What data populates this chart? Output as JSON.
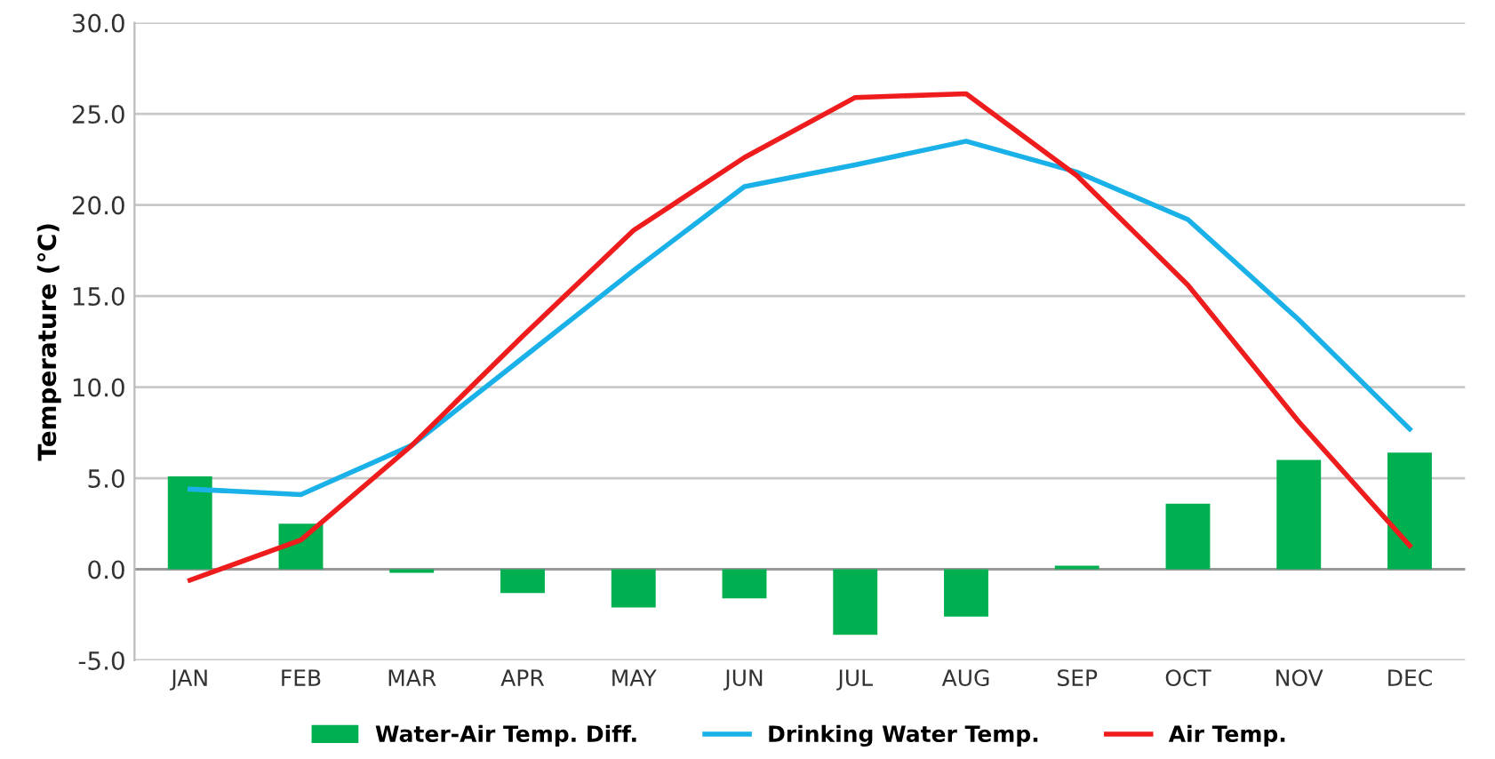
{
  "chart_data": {
    "type": "line",
    "ylabel": "Temperature (℃)",
    "categories": [
      "JAN",
      "FEB",
      "MAR",
      "APR",
      "MAY",
      "JUN",
      "JUL",
      "AUG",
      "SEP",
      "OCT",
      "NOV",
      "DEC"
    ],
    "series": [
      {
        "name": "Water-Air Temp. Diff.",
        "type": "bar",
        "color": "#00b050",
        "values": [
          5.1,
          2.5,
          -0.2,
          -1.3,
          -2.1,
          -1.6,
          -3.6,
          -2.6,
          0.2,
          3.6,
          6.0,
          6.4
        ]
      },
      {
        "name": "Drinking Water Temp.",
        "color": "#1ab0e8",
        "values": [
          4.4,
          4.1,
          6.8,
          11.6,
          16.4,
          21.0,
          22.2,
          23.5,
          21.8,
          19.2,
          13.7,
          7.7
        ]
      },
      {
        "name": "Air Temp.",
        "color": "#ee1c1c",
        "values": [
          -0.6,
          1.6,
          6.8,
          12.8,
          18.6,
          22.6,
          25.9,
          26.1,
          21.6,
          15.6,
          8.1,
          1.3
        ]
      }
    ],
    "ylim": [
      -5.0,
      30.0
    ],
    "yticks": [
      {
        "value": -5,
        "label": "-5.0"
      },
      {
        "value": 0,
        "label": "0.0"
      },
      {
        "value": 5,
        "label": "5.0"
      },
      {
        "value": 10,
        "label": "10.0"
      },
      {
        "value": 15,
        "label": "15.0"
      },
      {
        "value": 20,
        "label": "20.0"
      },
      {
        "value": 25,
        "label": "25.0"
      },
      {
        "value": 30,
        "label": "30.0"
      }
    ],
    "grid": "y",
    "legend": "bottom"
  }
}
